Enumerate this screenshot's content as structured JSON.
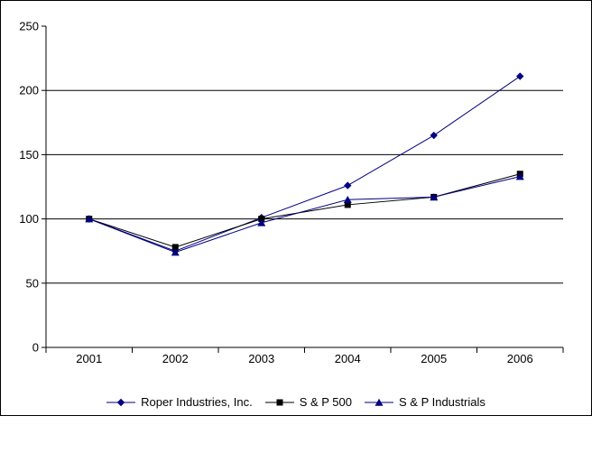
{
  "chart_data": {
    "type": "line",
    "title": "",
    "xlabel": "",
    "ylabel": "",
    "categories": [
      "2001",
      "2002",
      "2003",
      "2004",
      "2005",
      "2006"
    ],
    "series": [
      {
        "name": "Roper Industries, Inc.",
        "marker": "diamond",
        "color": "#000080",
        "values": [
          100,
          75,
          101,
          126,
          165,
          211
        ]
      },
      {
        "name": "S & P 500",
        "marker": "square",
        "color": "#000000",
        "values": [
          100,
          78,
          100,
          111,
          117,
          135
        ]
      },
      {
        "name": "S & P Industrials",
        "marker": "triangle",
        "color": "#000080",
        "values": [
          100,
          74,
          97,
          115,
          117,
          133
        ]
      }
    ],
    "ylim": [
      0,
      250
    ],
    "yticks": [
      0,
      50,
      100,
      150,
      200,
      250
    ],
    "grid": "horizontal",
    "gridline_color": "#000000",
    "axis_color": "#000000",
    "legend_position": "bottom"
  }
}
